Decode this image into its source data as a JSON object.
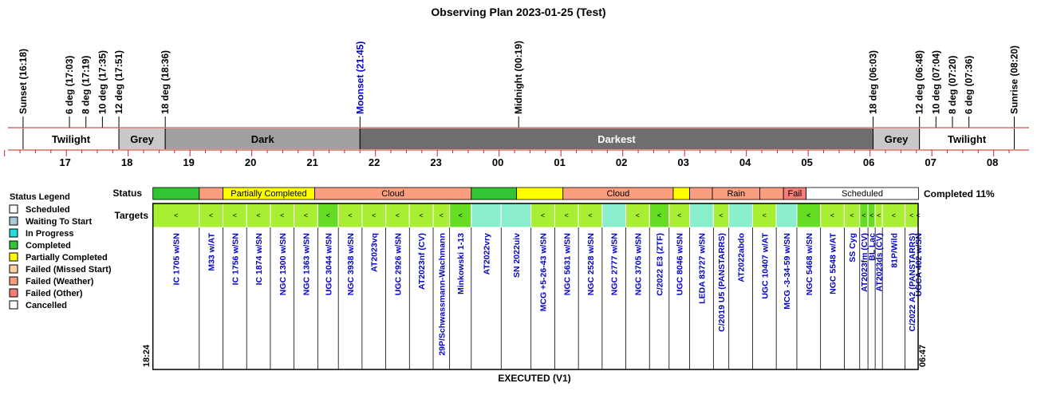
{
  "title": "Observing Plan 2023-01-25 (Test)",
  "events": [
    {
      "label": "Sunset (16:18)",
      "time": "16:18",
      "color": "#000000"
    },
    {
      "label": "6 deg (17:03)",
      "time": "17:03",
      "color": "#000000"
    },
    {
      "label": "8 deg (17:19)",
      "time": "17:19",
      "color": "#000000"
    },
    {
      "label": "10 deg (17:35)",
      "time": "17:35",
      "color": "#000000"
    },
    {
      "label": "12 deg (17:51)",
      "time": "17:51",
      "color": "#000000"
    },
    {
      "label": "18 deg (18:36)",
      "time": "18:36",
      "color": "#000000"
    },
    {
      "label": "Moonset (21:45)",
      "time": "21:45",
      "color": "#0000cc"
    },
    {
      "label": "Midnight (00:19)",
      "time": "00:19",
      "color": "#000000"
    },
    {
      "label": "18 deg (06:03)",
      "time": "06:03",
      "color": "#000000"
    },
    {
      "label": "12 deg (06:48)",
      "time": "06:48",
      "color": "#000000"
    },
    {
      "label": "10 deg (07:04)",
      "time": "07:04",
      "color": "#000000"
    },
    {
      "label": "8 deg (07:20)",
      "time": "07:20",
      "color": "#000000"
    },
    {
      "label": "6 deg (07:36)",
      "time": "07:36",
      "color": "#000000"
    },
    {
      "label": "Sunrise (08:20)",
      "time": "08:20",
      "color": "#000000"
    }
  ],
  "bands": [
    {
      "label": "Twilight",
      "start": "16:18",
      "end": "17:51",
      "color": "#ffffff",
      "text_color": "#000000"
    },
    {
      "label": "Grey",
      "start": "17:51",
      "end": "18:36",
      "color": "#c8c8c8",
      "text_color": "#000000"
    },
    {
      "label": "Dark",
      "start": "18:36",
      "end": "21:45",
      "color": "#a0a0a0",
      "text_color": "#000000"
    },
    {
      "label": "Darkest",
      "start": "21:45",
      "end": "06:03",
      "color": "#6e6e6e",
      "text_color": "#ffffff"
    },
    {
      "label": "Grey",
      "start": "06:03",
      "end": "06:48",
      "color": "#c8c8c8",
      "text_color": "#000000"
    },
    {
      "label": "Twilight",
      "start": "06:48",
      "end": "08:20",
      "color": "#ffffff",
      "text_color": "#000000"
    }
  ],
  "hours": [
    "17",
    "18",
    "19",
    "20",
    "21",
    "22",
    "23",
    "00",
    "01",
    "02",
    "03",
    "04",
    "05",
    "06",
    "07",
    "08"
  ],
  "status_label": "Status",
  "targets_label": "Targets",
  "completed_text": "Completed 11%",
  "bottom_label": "EXECUTED (V1)",
  "start_time": "18:24",
  "end_time": "06:47",
  "legend": {
    "title": "Status Legend",
    "items": [
      {
        "label": "Scheduled",
        "color": "#ffffff"
      },
      {
        "label": "Waiting To Start",
        "color": "#a9c8d8"
      },
      {
        "label": "In Progress",
        "color": "#22dede"
      },
      {
        "label": "Completed",
        "color": "#33c433"
      },
      {
        "label": "Partially Completed",
        "color": "#ffff00"
      },
      {
        "label": "Failed (Missed Start)",
        "color": "#ffd0a0"
      },
      {
        "label": "Failed (Weather)",
        "color": "#fa9e80"
      },
      {
        "label": "Failed (Other)",
        "color": "#f57e78"
      },
      {
        "label": "Cancelled",
        "color": "#ffffff"
      }
    ]
  },
  "status_segments": [
    {
      "label": "",
      "start": "18:24",
      "end": "19:09",
      "color": "#33c433"
    },
    {
      "label": "",
      "start": "19:09",
      "end": "19:32",
      "color": "#fa9e80"
    },
    {
      "label": "Partially Completed",
      "start": "19:32",
      "end": "21:01",
      "color": "#ffff00"
    },
    {
      "label": "Cloud",
      "start": "21:01",
      "end": "23:33",
      "color": "#fa9e80"
    },
    {
      "label": "",
      "start": "23:33",
      "end": "00:17",
      "color": "#33c433"
    },
    {
      "label": "",
      "start": "00:17",
      "end": "01:02",
      "color": "#ffff00"
    },
    {
      "label": "Cloud",
      "start": "01:02",
      "end": "02:49",
      "color": "#fa9e80"
    },
    {
      "label": "",
      "start": "02:49",
      "end": "03:05",
      "color": "#ffff00"
    },
    {
      "label": "",
      "start": "03:05",
      "end": "03:27",
      "color": "#fa9e80"
    },
    {
      "label": "Rain",
      "start": "03:27",
      "end": "04:13",
      "color": "#fa9e80"
    },
    {
      "label": "",
      "start": "04:13",
      "end": "04:36",
      "color": "#fa9e80"
    },
    {
      "label": "Fail",
      "start": "04:36",
      "end": "04:58",
      "color": "#f57e78"
    },
    {
      "label": "Scheduled",
      "start": "04:58",
      "end": "06:47",
      "color": "#ffffff"
    }
  ],
  "targets": [
    {
      "name": "IC 1705 w/SN",
      "color": "#a8ee33",
      "mark": "<"
    },
    {
      "name": "M33 w/AT",
      "color": "#a8ee33",
      "mark": "<"
    },
    {
      "name": "IC 1756 w/SN",
      "color": "#a8ee33",
      "mark": "<"
    },
    {
      "name": "IC 1874 w/SN",
      "color": "#a8ee33",
      "mark": "<"
    },
    {
      "name": "NGC 1300 w/SN",
      "color": "#a8ee33",
      "mark": "<"
    },
    {
      "name": "NGC 1363 w/SN",
      "color": "#a8ee33",
      "mark": "<"
    },
    {
      "name": "UGC 3044 w/SN",
      "color": "#66dd22",
      "mark": "<"
    },
    {
      "name": "NGC 3938 w/SN",
      "color": "#a8ee33",
      "mark": "<"
    },
    {
      "name": "AT2023vq",
      "color": "#a8ee33",
      "mark": "<"
    },
    {
      "name": "UGC 2926 w/SN",
      "color": "#a8ee33",
      "mark": "<"
    },
    {
      "name": "AT2023nf (CV)",
      "color": "#a8ee33",
      "mark": "<"
    },
    {
      "name": "29P/Schwassmann-Wachmann",
      "color": "#a8ee33",
      "mark": "<"
    },
    {
      "name": "Minkowski 1-13",
      "color": "#66dd22",
      "mark": "<"
    },
    {
      "name": "AT2022vry",
      "color": "#88eecc",
      "mark": ""
    },
    {
      "name": "SN 2022uiv",
      "color": "#88eecc",
      "mark": ""
    },
    {
      "name": "MCG +5-26-43 w/SN",
      "color": "#a8ee33",
      "mark": "<"
    },
    {
      "name": "NGC 5631 w/SN",
      "color": "#a8ee33",
      "mark": "<"
    },
    {
      "name": "NGC 2528 w/SN",
      "color": "#a8ee33",
      "mark": "<"
    },
    {
      "name": "NGC 2777 w/SN",
      "color": "#88eecc",
      "mark": ""
    },
    {
      "name": "NGC 3705 w/SN",
      "color": "#a8ee33",
      "mark": "<"
    },
    {
      "name": "C/2022 E3 (ZTF)",
      "color": "#66dd22",
      "mark": "<"
    },
    {
      "name": "UGC 8046 w/SN",
      "color": "#a8ee33",
      "mark": "<"
    },
    {
      "name": "LEDA 83727 w/SN",
      "color": "#88eecc",
      "mark": ""
    },
    {
      "name": "C/2019 U5 (PANSTARRS)",
      "color": "#a8ee33",
      "mark": "<"
    },
    {
      "name": "AT2022abdo",
      "color": "#88eecc",
      "mark": ""
    },
    {
      "name": "UGC 10407 w/AT",
      "color": "#a8ee33",
      "mark": "<"
    },
    {
      "name": "MCG -3-34-59 w/SN",
      "color": "#88eecc",
      "mark": ""
    },
    {
      "name": "NGC 5468 w/SN",
      "color": "#66dd22",
      "mark": "<"
    },
    {
      "name": "NGC 5548 w/AT",
      "color": "#a8ee33",
      "mark": "<"
    },
    {
      "name": "SS Cyg",
      "color": "#a8ee33",
      "mark": "<"
    },
    {
      "name": "AT2023fm (CV)",
      "color": "#66dd22",
      "mark": "<"
    },
    {
      "name": "BL Lac",
      "color": "#66dd22",
      "mark": "<"
    },
    {
      "name": "AT2023ds (CV)",
      "color": "#a8ee33",
      "mark": "<"
    },
    {
      "name": "81P/Wild",
      "color": "#a8ee33",
      "mark": "<"
    },
    {
      "name": "C/2022 A2 (PANSTARRS)",
      "color": "#a8ee33",
      "mark": "<"
    },
    {
      "name": "UGCA 402 w/SN",
      "color": "#66dd22",
      "mark": "<"
    }
  ],
  "target_spans": [
    [
      "18:24",
      "19:09"
    ],
    [
      "19:09",
      "19:32"
    ],
    [
      "19:32",
      "19:55"
    ],
    [
      "19:55",
      "20:18"
    ],
    [
      "20:18",
      "20:41"
    ],
    [
      "20:41",
      "21:04"
    ],
    [
      "21:04",
      "21:24"
    ],
    [
      "21:24",
      "21:47"
    ],
    [
      "21:47",
      "22:10"
    ],
    [
      "22:10",
      "22:33"
    ],
    [
      "22:33",
      "22:56"
    ],
    [
      "22:56",
      "23:12"
    ],
    [
      "23:12",
      "23:33"
    ],
    [
      "23:33",
      "00:02"
    ],
    [
      "00:02",
      "00:31"
    ],
    [
      "00:31",
      "00:54"
    ],
    [
      "00:54",
      "01:17"
    ],
    [
      "01:17",
      "01:40"
    ],
    [
      "01:40",
      "02:03"
    ],
    [
      "02:03",
      "02:26"
    ],
    [
      "02:26",
      "02:45"
    ],
    [
      "02:45",
      "03:05"
    ],
    [
      "03:05",
      "03:28"
    ],
    [
      "03:28",
      "03:43"
    ],
    [
      "03:43",
      "04:06"
    ],
    [
      "04:06",
      "04:29"
    ],
    [
      "04:29",
      "04:49"
    ],
    [
      "04:49",
      "05:12"
    ],
    [
      "05:12",
      "05:35"
    ],
    [
      "05:35",
      "05:50"
    ],
    [
      "05:50",
      "05:58"
    ],
    [
      "05:58",
      "06:05"
    ],
    [
      "06:05",
      "06:12"
    ],
    [
      "06:12",
      "06:34"
    ],
    [
      "06:34",
      "06:47"
    ],
    [
      "06:47",
      "07:09"
    ]
  ]
}
